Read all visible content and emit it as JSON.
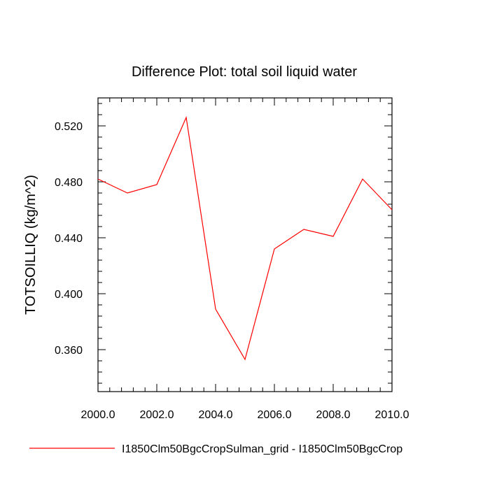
{
  "chart_data": {
    "type": "line",
    "title": "Difference Plot: total soil liquid water",
    "xlabel": "",
    "ylabel": "TOTSOILLIQ  (kg/m^2)",
    "xlim": [
      2000,
      2010
    ],
    "ylim": [
      0.33,
      0.54
    ],
    "grid": false,
    "legend_position": "bottom",
    "x_ticks": [
      2000,
      2002,
      2004,
      2006,
      2008,
      2010
    ],
    "x_tick_labels": [
      "2000.0",
      "2002.0",
      "2004.0",
      "2006.0",
      "2008.0",
      "2010.0"
    ],
    "y_ticks": [
      0.36,
      0.4,
      0.44,
      0.48,
      0.52
    ],
    "y_tick_labels": [
      "0.360",
      "0.400",
      "0.440",
      "0.480",
      "0.520"
    ],
    "x": [
      2000,
      2001,
      2002,
      2003,
      2004,
      2005,
      2006,
      2007,
      2008,
      2009,
      2010
    ],
    "series": [
      {
        "name": "I1850Clm50BgcCropSulman_grid - I1850Clm50BgcCrop",
        "color": "#ff0000",
        "values": [
          0.482,
          0.472,
          0.478,
          0.526,
          0.389,
          0.353,
          0.432,
          0.446,
          0.441,
          0.482,
          0.46
        ]
      }
    ]
  }
}
